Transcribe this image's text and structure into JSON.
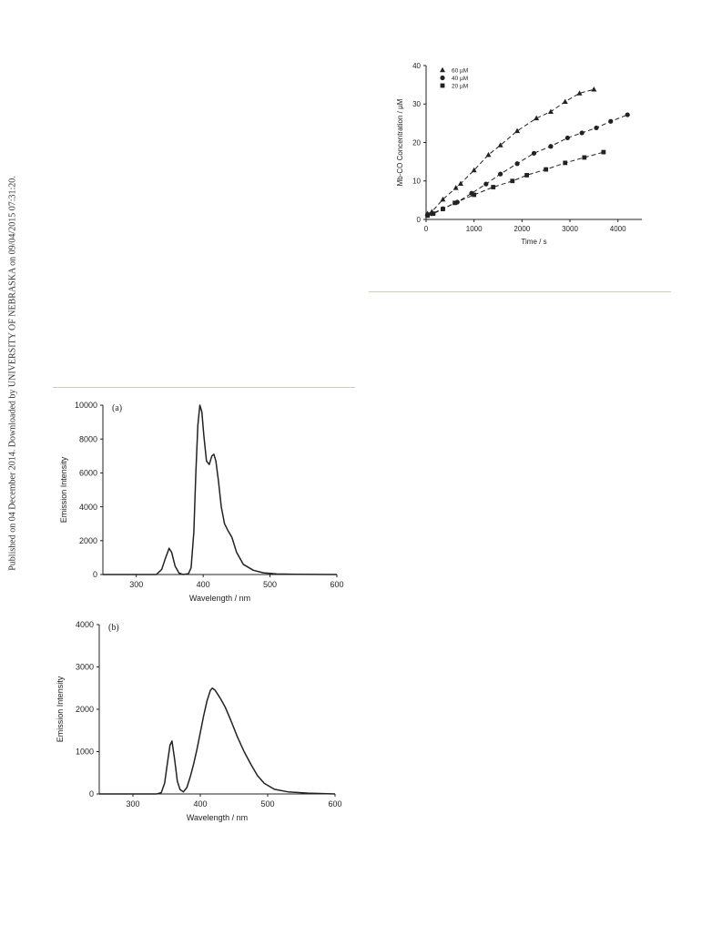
{
  "side_note": "Published on 04 December 2014. Downloaded by UNIVERSITY OF NEBRASKA on 09/04/2015 07:31:20.",
  "chart_data": [
    {
      "type": "scatter",
      "xlabel": "Time / s",
      "ylabel": "Mb-CO Concentration / µM",
      "xlim": [
        0,
        4500
      ],
      "ylim": [
        0,
        40
      ],
      "xticks": [
        "0",
        "1000",
        "2000",
        "3000",
        "4000"
      ],
      "yticks": [
        "0",
        "10",
        "20",
        "30",
        "40"
      ],
      "legend": "top-left",
      "grid": false,
      "series": [
        {
          "name": "60 µM",
          "marker": "triangle",
          "x": [
            30,
            120,
            350,
            620,
            720,
            1000,
            1300,
            1550,
            1900,
            2300,
            2600,
            2900,
            3200,
            3500
          ],
          "y": [
            1.5,
            2.0,
            5.2,
            8.2,
            9.3,
            12.8,
            16.8,
            19.3,
            23.0,
            26.3,
            28.0,
            30.6,
            32.8,
            33.8
          ]
        },
        {
          "name": "40 µM",
          "marker": "circle",
          "x": [
            30,
            120,
            350,
            650,
            950,
            1250,
            1550,
            1900,
            2250,
            2600,
            2950,
            3250,
            3550,
            3850,
            4200
          ],
          "y": [
            1.2,
            1.5,
            2.8,
            4.5,
            6.8,
            9.2,
            11.8,
            14.5,
            17.2,
            19.0,
            21.2,
            22.5,
            23.8,
            25.5,
            27.2
          ]
        },
        {
          "name": "20 µM",
          "marker": "square",
          "x": [
            30,
            150,
            350,
            600,
            1000,
            1400,
            1800,
            2100,
            2500,
            2900,
            3300,
            3700
          ],
          "y": [
            1.0,
            1.5,
            2.7,
            4.3,
            6.4,
            8.4,
            10.0,
            11.5,
            13.0,
            14.7,
            16.1,
            17.5
          ]
        }
      ]
    },
    {
      "type": "line",
      "label": "(a)",
      "xlabel": "Wavelength / nm",
      "ylabel": "Emission Intensity",
      "xlim": [
        250,
        600
      ],
      "ylim": [
        0,
        10000
      ],
      "xticks": [
        "300",
        "400",
        "500",
        "600"
      ],
      "yticks": [
        "0",
        "2000",
        "4000",
        "6000",
        "8000",
        "10000"
      ],
      "grid": false,
      "x": [
        250,
        330,
        338,
        343,
        349,
        353,
        358,
        364,
        370,
        378,
        382,
        386,
        389,
        392,
        395,
        398,
        401,
        405,
        409,
        413,
        416,
        419,
        423,
        427,
        432,
        437,
        443,
        450,
        460,
        475,
        490,
        510,
        540,
        600
      ],
      "y": [
        0,
        0,
        300,
        900,
        1550,
        1300,
        500,
        80,
        0,
        50,
        400,
        2500,
        6000,
        8800,
        10000,
        9600,
        8200,
        6700,
        6500,
        7000,
        7100,
        6700,
        5500,
        4000,
        3000,
        2600,
        2200,
        1300,
        600,
        250,
        100,
        30,
        10,
        0
      ]
    },
    {
      "type": "line",
      "label": "(b)",
      "xlabel": "Wavelength / nm",
      "ylabel": "Emission Intensity",
      "xlim": [
        250,
        600
      ],
      "ylim": [
        0,
        4000
      ],
      "xticks": [
        "300",
        "400",
        "500",
        "600"
      ],
      "yticks": [
        "0",
        "1000",
        "2000",
        "3000",
        "4000"
      ],
      "grid": false,
      "x": [
        250,
        335,
        342,
        347,
        351,
        355,
        358,
        362,
        366,
        370,
        375,
        380,
        385,
        390,
        395,
        400,
        405,
        410,
        415,
        418,
        422,
        426,
        430,
        437,
        445,
        455,
        465,
        475,
        485,
        495,
        510,
        530,
        560,
        600
      ],
      "y": [
        0,
        0,
        30,
        250,
        700,
        1150,
        1250,
        800,
        300,
        100,
        50,
        150,
        400,
        700,
        1050,
        1450,
        1850,
        2200,
        2450,
        2500,
        2450,
        2350,
        2250,
        2050,
        1750,
        1350,
        1000,
        700,
        430,
        250,
        110,
        50,
        20,
        0
      ]
    }
  ]
}
